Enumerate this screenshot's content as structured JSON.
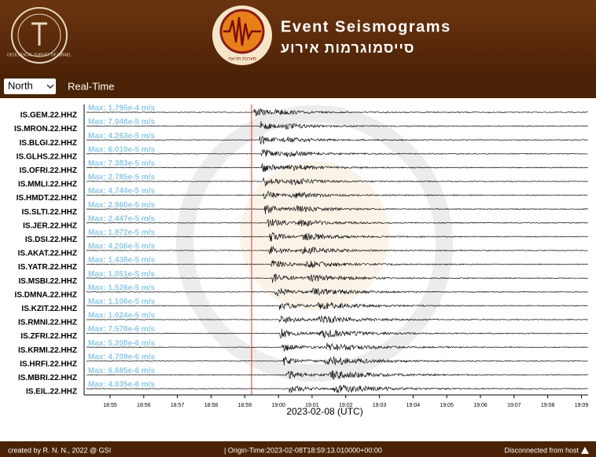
{
  "header": {
    "title": "Event Seismograms",
    "subtitle": "סייסמוגרמות אירוע",
    "left_logo": "GEOLOGICAL SURVEY OF ISRAEL",
    "center_logo": "מערכת תרועה"
  },
  "toolbar": {
    "region": "North",
    "mode": "Real-Time"
  },
  "stations": [
    {
      "name": "IS.GEM.22.HHZ",
      "max": "Max: 1.795e-4 m/s"
    },
    {
      "name": "IS.MRON.22.HHZ",
      "max": "Max: 7.048e-5 m/s"
    },
    {
      "name": "IS.BLGI.22.HHZ",
      "max": "Max: 4.263e-5 m/s"
    },
    {
      "name": "IS.GLHS.22.HHZ",
      "max": "Max: 6.010e-5 m/s"
    },
    {
      "name": "IS.OFRI.22.HHZ",
      "max": "Max: 7.383e-5 m/s"
    },
    {
      "name": "IS.MMLI.22.HHZ",
      "max": "Max: 2.785e-5 m/s"
    },
    {
      "name": "IS.HMDT.22.HHZ",
      "max": "Max: 4.744e-5 m/s"
    },
    {
      "name": "IS.SLTI.22.HHZ",
      "max": "Max: 2.960e-5 m/s"
    },
    {
      "name": "IS.JER.22.HHZ",
      "max": "Max: 2.447e-5 m/s"
    },
    {
      "name": "IS.DSI.22.HHZ",
      "max": "Max: 1.872e-5 m/s"
    },
    {
      "name": "IS.AKAT.22.HHZ",
      "max": "Max: 4.206e-5 m/s"
    },
    {
      "name": "IS.YATR.22.HHZ",
      "max": "Max: 1.438e-5 m/s"
    },
    {
      "name": "IS.MSBI.22.HHZ",
      "max": "Max: 1.051e-5 m/s"
    },
    {
      "name": "IS.DMNA.22.HHZ",
      "max": "Max: 1.526e-5 m/s"
    },
    {
      "name": "IS.KZIT.22.HHZ",
      "max": "Max: 1.106e-5 m/s"
    },
    {
      "name": "IS.RMNI.22.HHZ",
      "max": "Max: 1.024e-5 m/s"
    },
    {
      "name": "IS.ZFRI.22.HHZ",
      "max": "Max: 7.578e-6 m/s"
    },
    {
      "name": "IS.KRMI.22.HHZ",
      "max": "Max: 5.208e-6 m/s"
    },
    {
      "name": "IS.HRFI.22.HHZ",
      "max": "Max: 4.709e-6 m/s"
    },
    {
      "name": "IS.MBRI.22.HHZ",
      "max": "Max: 6.685e-6 m/s"
    },
    {
      "name": "IS.EIL.22.HHZ",
      "max": "Max: 4.035e-6 m/s"
    }
  ],
  "time_axis": {
    "ticks": [
      "18:55",
      "18:56",
      "18:57",
      "18:58",
      "18:59",
      "19:00",
      "19:01",
      "19:02",
      "19:03",
      "19:04",
      "19:05",
      "19:06",
      "19:07",
      "19:08",
      "19:09"
    ],
    "label": "2023-02-08 (UTC)"
  },
  "footer": {
    "credit": "created by R. N. N., 2022 @ GSI",
    "origin": "| Origin-Time:2023-02-08T18:59:13.010000+00:00",
    "status": "Disconnected from host"
  }
}
